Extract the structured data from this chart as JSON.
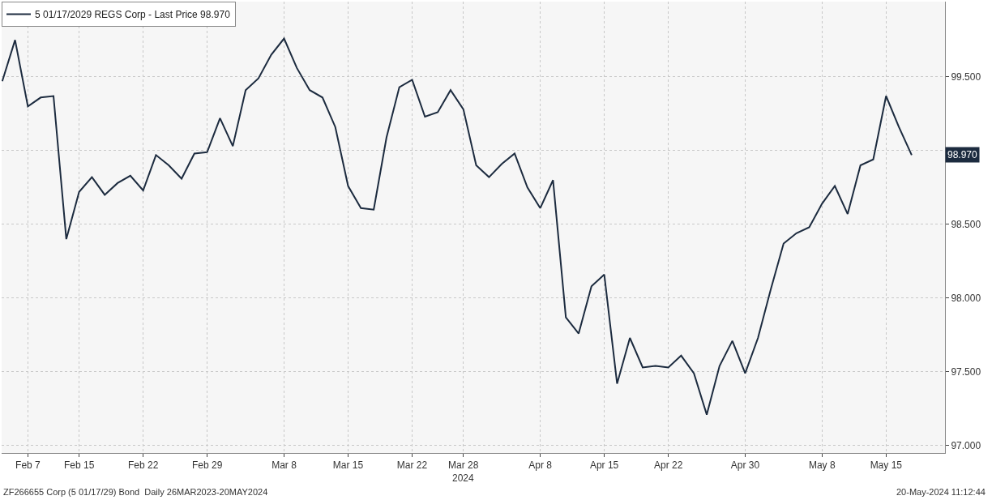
{
  "chart_data": {
    "type": "line",
    "categories": [
      null,
      null,
      "Feb 7",
      null,
      null,
      null,
      "Feb 15",
      null,
      null,
      null,
      null,
      "Feb 22",
      null,
      null,
      null,
      null,
      "Feb 29",
      null,
      null,
      null,
      null,
      null,
      "Mar 8",
      null,
      null,
      null,
      null,
      "Mar 15",
      null,
      null,
      null,
      null,
      "Mar 22",
      null,
      null,
      null,
      "Mar 28",
      null,
      null,
      null,
      null,
      null,
      "Apr 8",
      null,
      null,
      null,
      null,
      "Apr 15",
      null,
      null,
      null,
      null,
      "Apr 22",
      null,
      null,
      null,
      null,
      null,
      "Apr 30",
      null,
      null,
      null,
      null,
      null,
      "May 8",
      null,
      null,
      null,
      null,
      "May 15",
      null,
      null
    ],
    "series": [
      {
        "name": "5 01/17/2029 REGS Corp - Last Price 98.970",
        "color": "#1c2b3f",
        "values": [
          99.47,
          99.75,
          99.3,
          99.36,
          99.37,
          98.4,
          98.72,
          98.82,
          98.7,
          98.78,
          98.83,
          98.73,
          98.97,
          98.9,
          98.81,
          98.98,
          98.99,
          99.22,
          99.03,
          99.41,
          99.49,
          99.65,
          99.76,
          99.56,
          99.41,
          99.36,
          99.16,
          98.76,
          98.61,
          98.6,
          99.09,
          99.43,
          99.48,
          99.23,
          99.26,
          99.41,
          99.28,
          98.9,
          98.82,
          98.91,
          98.98,
          98.75,
          98.61,
          98.8,
          97.87,
          97.76,
          98.08,
          98.16,
          97.42,
          97.73,
          97.53,
          97.54,
          97.53,
          97.61,
          97.49,
          97.21,
          97.54,
          97.71,
          97.49,
          97.73,
          98.06,
          98.37,
          98.44,
          98.48,
          98.64,
          98.76,
          98.57,
          98.9,
          98.94,
          99.37,
          99.16,
          98.97
        ]
      }
    ],
    "ylim": [
      96.95,
      100.01
    ],
    "yticks": [
      {
        "value": 97,
        "label": "97.000"
      },
      {
        "value": 97.5,
        "label": "97.500"
      },
      {
        "value": 98,
        "label": "98.000"
      },
      {
        "value": 98.5,
        "label": "98.500"
      },
      {
        "value": 99,
        "label": null
      },
      {
        "value": 99.5,
        "label": "99.500"
      }
    ],
    "grid": true,
    "legend": "top left",
    "marker": "none",
    "line_style": "solid",
    "annotations": [
      "98.970",
      "2024",
      "ZF266655 Corp (5 01/17/29) Bond  Daily 26MAR2023-20MAY2024",
      "20-May-2024 11:12:44"
    ]
  }
}
